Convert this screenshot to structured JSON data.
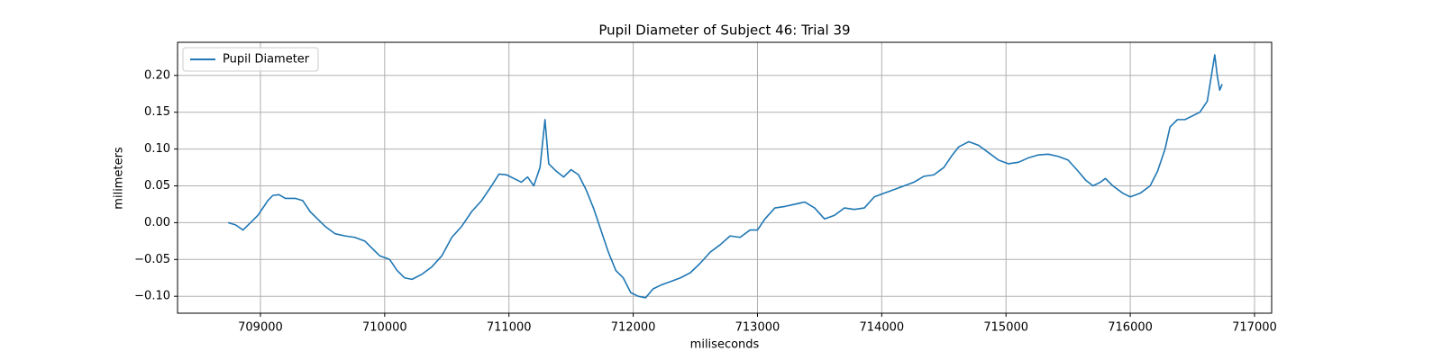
{
  "chart_data": {
    "type": "line",
    "title": "Pupil Diameter of Subject 46: Trial 39",
    "xlabel": "miliseconds",
    "ylabel": "milimeters",
    "x": [
      708740,
      708800,
      708860,
      708920,
      708980,
      709020,
      709060,
      709100,
      709150,
      709200,
      709280,
      709340,
      709400,
      709460,
      709520,
      709600,
      709680,
      709760,
      709840,
      709900,
      709960,
      710040,
      710100,
      710160,
      710220,
      710300,
      710380,
      710460,
      710540,
      710620,
      710700,
      710780,
      710860,
      710920,
      710980,
      711040,
      711100,
      711150,
      711200,
      711250,
      711290,
      711320,
      711380,
      711440,
      711500,
      711560,
      711620,
      711680,
      711740,
      711800,
      711860,
      711920,
      711980,
      712040,
      712100,
      712160,
      712220,
      712300,
      712380,
      712460,
      712540,
      712620,
      712700,
      712780,
      712860,
      712940,
      713000,
      713060,
      713140,
      713220,
      713300,
      713380,
      713460,
      713540,
      713620,
      713700,
      713780,
      713860,
      713940,
      714020,
      714100,
      714180,
      714260,
      714340,
      714420,
      714500,
      714560,
      714620,
      714700,
      714780,
      714860,
      714940,
      715020,
      715100,
      715180,
      715260,
      715340,
      715420,
      715500,
      715580,
      715640,
      715700,
      715760,
      715800,
      715860,
      715940,
      716000,
      716080,
      716160,
      716220,
      716280,
      716320,
      716380,
      716440,
      716500,
      716560,
      716620,
      716680,
      716700,
      716720,
      716740
    ],
    "series": [
      {
        "name": "Pupil Diameter",
        "color": "#1f77b4",
        "values": [
          0.0,
          -0.003,
          -0.01,
          0.0,
          0.01,
          0.02,
          0.03,
          0.037,
          0.038,
          0.033,
          0.033,
          0.03,
          0.015,
          0.005,
          -0.005,
          -0.015,
          -0.018,
          -0.02,
          -0.025,
          -0.035,
          -0.045,
          -0.05,
          -0.065,
          -0.075,
          -0.077,
          -0.07,
          -0.06,
          -0.045,
          -0.02,
          -0.005,
          0.015,
          0.03,
          0.05,
          0.066,
          0.065,
          0.06,
          0.055,
          0.062,
          0.05,
          0.075,
          0.14,
          0.08,
          0.07,
          0.062,
          0.072,
          0.065,
          0.045,
          0.02,
          -0.01,
          -0.04,
          -0.065,
          -0.075,
          -0.095,
          -0.1,
          -0.102,
          -0.09,
          -0.085,
          -0.08,
          -0.075,
          -0.068,
          -0.055,
          -0.04,
          -0.03,
          -0.018,
          -0.02,
          -0.01,
          -0.01,
          0.005,
          0.02,
          0.022,
          0.025,
          0.028,
          0.02,
          0.005,
          0.01,
          0.02,
          0.018,
          0.02,
          0.035,
          0.04,
          0.045,
          0.05,
          0.055,
          0.063,
          0.065,
          0.075,
          0.09,
          0.103,
          0.11,
          0.105,
          0.095,
          0.085,
          0.08,
          0.082,
          0.088,
          0.092,
          0.093,
          0.09,
          0.085,
          0.07,
          0.058,
          0.05,
          0.055,
          0.06,
          0.05,
          0.04,
          0.035,
          0.04,
          0.05,
          0.07,
          0.1,
          0.13,
          0.14,
          0.14,
          0.145,
          0.15,
          0.165,
          0.228,
          0.2,
          0.18,
          0.188
        ]
      }
    ],
    "xlim": [
      708333,
      717138
    ],
    "xticks": [
      709000,
      710000,
      711000,
      712000,
      713000,
      714000,
      715000,
      716000,
      717000
    ],
    "ylim": [
      -0.123,
      0.245
    ],
    "yticks": [
      {
        "value": -0.1,
        "label": "−0.10"
      },
      {
        "value": -0.05,
        "label": "−0.05"
      },
      {
        "value": 0,
        "label": "0.00"
      },
      {
        "value": 0.05,
        "label": "0.05"
      },
      {
        "value": 0.1,
        "label": "0.10"
      },
      {
        "value": 0.15,
        "label": "0.15"
      },
      {
        "value": 0.2,
        "label": "0.20"
      }
    ],
    "grid": true,
    "legend": "upper-left"
  }
}
